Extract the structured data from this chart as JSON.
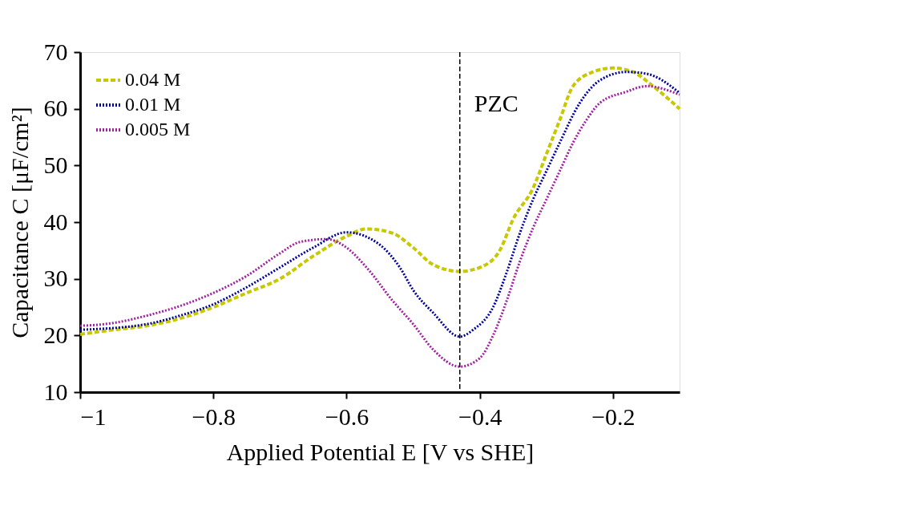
{
  "chart_data": {
    "type": "line",
    "xlabel": "Applied Potential E [V vs SHE]",
    "ylabel": "Capacitance C [μF/cm²]",
    "xlim": [
      -1,
      -0.1
    ],
    "xticks": [
      {
        "value": -1,
        "label": "−1"
      },
      {
        "value": -0.8,
        "label": "−0.8"
      },
      {
        "value": -0.6,
        "label": "−0.6"
      },
      {
        "value": -0.4,
        "label": "−0.4"
      },
      {
        "value": -0.2,
        "label": "−0.2"
      }
    ],
    "ylim": [
      10,
      70
    ],
    "yticks": [
      10,
      20,
      30,
      40,
      50,
      60,
      70
    ],
    "legend": "top left",
    "ref_lines": [
      {
        "axis": "x",
        "value": -0.43,
        "label": "PZC",
        "color": "#000000",
        "line_style": "dashed"
      }
    ],
    "series": [
      {
        "name": "0.04 M",
        "color": "#c8c800",
        "line_style": "dashed",
        "x": [
          -1,
          -0.95,
          -0.9,
          -0.85,
          -0.8,
          -0.75,
          -0.7,
          -0.65,
          -0.6,
          -0.57,
          -0.53,
          -0.5,
          -0.47,
          -0.43,
          -0.4,
          -0.37,
          -0.35,
          -0.32,
          -0.3,
          -0.28,
          -0.26,
          -0.23,
          -0.2,
          -0.17,
          -0.14,
          -0.1
        ],
        "values": [
          20.2,
          21,
          21.7,
          23,
          25,
          27.5,
          30,
          34,
          37.5,
          38.8,
          38,
          35.5,
          32.5,
          31.3,
          32,
          35,
          40.5,
          46,
          52,
          58,
          64,
          66.5,
          67.2,
          66.5,
          64,
          60
        ]
      },
      {
        "name": "0.01 M",
        "color": "#00009a",
        "line_style": "dotted",
        "x": [
          -1,
          -0.9,
          -0.85,
          -0.8,
          -0.75,
          -0.7,
          -0.65,
          -0.6,
          -0.55,
          -0.52,
          -0.5,
          -0.47,
          -0.43,
          -0.41,
          -0.38,
          -0.36,
          -0.34,
          -0.32,
          -0.3,
          -0.28,
          -0.25,
          -0.22,
          -0.18,
          -0.15,
          -0.1
        ],
        "values": [
          21,
          22,
          23.5,
          25.5,
          28.5,
          32,
          35.5,
          38.2,
          36,
          32,
          28,
          24,
          19.8,
          21,
          25,
          31,
          38,
          44,
          49,
          54,
          61,
          65,
          66.5,
          66.2,
          62.8
        ]
      },
      {
        "name": "0.005 M",
        "color": "#a020a0",
        "line_style": "dotted",
        "x": [
          -1,
          -0.95,
          -0.9,
          -0.85,
          -0.8,
          -0.75,
          -0.7,
          -0.67,
          -0.63,
          -0.6,
          -0.57,
          -0.53,
          -0.5,
          -0.47,
          -0.43,
          -0.4,
          -0.38,
          -0.36,
          -0.34,
          -0.32,
          -0.3,
          -0.28,
          -0.26,
          -0.24,
          -0.22,
          -0.18,
          -0.15,
          -0.1
        ],
        "values": [
          21.7,
          22.2,
          23.5,
          25.2,
          27.5,
          30.5,
          34.5,
          36.5,
          37,
          35.5,
          32,
          26,
          22,
          17.5,
          14.5,
          16,
          20,
          26,
          33,
          39,
          44,
          49,
          54,
          58,
          61,
          63,
          64,
          62.5
        ]
      }
    ]
  }
}
